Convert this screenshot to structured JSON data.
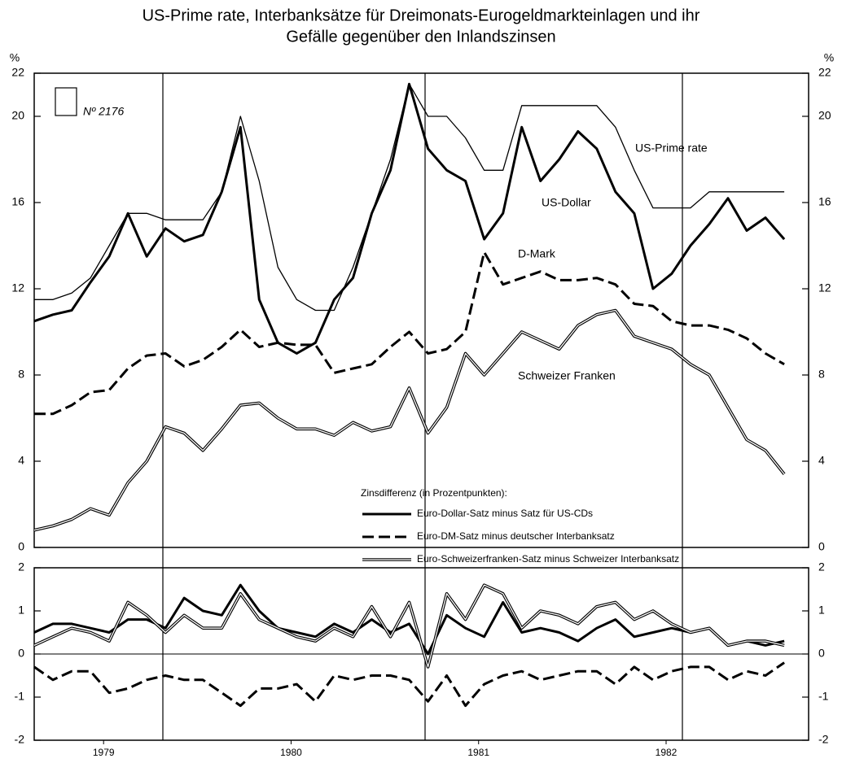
{
  "chart_data": [
    {
      "type": "line",
      "title": [
        "US-Prime rate, Interbanksätze für Dreimonats-Eurogeldmarkteinlagen und ihr",
        "Gefälle gegenüber den Inlandszinsen"
      ],
      "ylabel": "%",
      "badge": "Nº 2176",
      "x": [
        1979.13,
        1979.23,
        1979.33,
        1979.43,
        1979.53,
        1979.63,
        1979.73,
        1979.83,
        1979.93,
        1980.03,
        1980.13,
        1980.23,
        1980.33,
        1980.43,
        1980.53,
        1980.63,
        1980.73,
        1980.83,
        1980.93,
        1981.03,
        1981.13,
        1981.23,
        1981.33,
        1981.43,
        1981.53,
        1981.63,
        1981.73,
        1981.83,
        1981.93,
        1982.03,
        1982.13,
        1982.23,
        1982.33,
        1982.43,
        1982.53,
        1982.63,
        1982.73,
        1982.83,
        1982.93,
        1983.03,
        1983.13
      ],
      "xlim": [
        1979.13,
        1983.26
      ],
      "ylim": [
        0,
        22
      ],
      "yticks": [
        0,
        4,
        8,
        12,
        16,
        20,
        22
      ],
      "series": [
        {
          "name": "US-Prime rate",
          "color": "#000000",
          "line_style": "thin",
          "values": [
            11.5,
            11.5,
            11.8,
            12.5,
            14,
            15.5,
            15.5,
            15.2,
            15.2,
            15.2,
            16.5,
            20,
            17,
            13,
            11.5,
            11,
            11,
            13,
            15.5,
            18,
            21.5,
            20,
            20,
            19,
            17.5,
            17.5,
            20.5,
            20.5,
            20.5,
            20.5,
            20.5,
            19.5,
            17.5,
            15.75,
            15.75,
            15.75,
            16.5,
            16.5,
            16.5,
            16.5,
            16.5
          ]
        },
        {
          "name": "US-Dollar",
          "color": "#000000",
          "line_style": "solid",
          "values": [
            10.5,
            10.8,
            11,
            12.3,
            13.5,
            15.5,
            13.5,
            14.8,
            14.2,
            14.5,
            16.5,
            19.5,
            11.5,
            9.5,
            9,
            9.5,
            11.5,
            12.5,
            15.5,
            17.5,
            21.5,
            18.5,
            17.5,
            17,
            14.3,
            15.5,
            19.5,
            17,
            18,
            19.3,
            18.5,
            16.5,
            15.5,
            12,
            12.7,
            14,
            15,
            16.2,
            14.7,
            15.3,
            14.3
          ]
        },
        {
          "name": "D-Mark",
          "color": "#000000",
          "line_style": "dashed",
          "values": [
            6.2,
            6.2,
            6.6,
            7.2,
            7.3,
            8.3,
            8.9,
            9.0,
            8.4,
            8.7,
            9.3,
            10.1,
            9.3,
            9.5,
            9.4,
            9.4,
            8.1,
            8.3,
            8.5,
            9.3,
            10,
            9,
            9.2,
            10,
            13.7,
            12.2,
            12.5,
            12.8,
            12.4,
            12.4,
            12.5,
            12.2,
            11.3,
            11.2,
            10.5,
            10.3,
            10.3,
            10.1,
            9.7,
            9,
            8.5
          ]
        },
        {
          "name": "Schweizer Franken",
          "color": "#000000",
          "line_style": "double",
          "values": [
            0.8,
            1,
            1.3,
            1.8,
            1.5,
            3,
            4,
            5.6,
            5.3,
            4.5,
            5.5,
            6.6,
            6.7,
            6,
            5.5,
            5.5,
            5.2,
            5.8,
            5.4,
            5.6,
            7.4,
            5.3,
            6.5,
            9,
            8,
            9,
            10,
            9.6,
            9.2,
            10.3,
            10.8,
            11,
            9.8,
            9.5,
            9.2,
            8.5,
            8,
            6.5,
            5,
            4.5,
            3.4
          ]
        }
      ]
    },
    {
      "type": "line",
      "legend_title": "Zinsdifferenz (in Prozentpunkten):",
      "x": [
        1979.13,
        1979.23,
        1979.33,
        1979.43,
        1979.53,
        1979.63,
        1979.73,
        1979.83,
        1979.93,
        1980.03,
        1980.13,
        1980.23,
        1980.33,
        1980.43,
        1980.53,
        1980.63,
        1980.73,
        1980.83,
        1980.93,
        1981.03,
        1981.13,
        1981.23,
        1981.33,
        1981.43,
        1981.53,
        1981.63,
        1981.73,
        1981.83,
        1981.93,
        1982.03,
        1982.13,
        1982.23,
        1982.33,
        1982.43,
        1982.53,
        1982.63,
        1982.73,
        1982.83,
        1982.93,
        1983.03,
        1983.13
      ],
      "xlim": [
        1979.13,
        1983.26
      ],
      "xticks": [
        {
          "value": 1979.5,
          "label": "1979"
        },
        {
          "value": 1980.5,
          "label": "1980"
        },
        {
          "value": 1981.5,
          "label": "1981"
        },
        {
          "value": 1982.5,
          "label": "1982"
        }
      ],
      "ylim": [
        -2,
        2
      ],
      "yticks": [
        -2,
        -1,
        0,
        1,
        2
      ],
      "zero_line": true,
      "series": [
        {
          "name": "Euro-Dollar-Satz minus Satz für US-CDs",
          "color": "#000000",
          "line_style": "solid",
          "values": [
            0.5,
            0.7,
            0.7,
            0.6,
            0.5,
            0.8,
            0.8,
            0.6,
            1.3,
            1.0,
            0.9,
            1.6,
            1.0,
            0.6,
            0.5,
            0.4,
            0.7,
            0.5,
            0.8,
            0.5,
            0.7,
            0.0,
            0.9,
            0.6,
            0.4,
            1.2,
            0.5,
            0.6,
            0.5,
            0.3,
            0.6,
            0.8,
            0.4,
            0.5,
            0.6,
            0.5,
            0.6,
            0.2,
            0.3,
            0.2,
            0.3
          ]
        },
        {
          "name": "Euro-DM-Satz minus deutscher Interbanksatz",
          "color": "#000000",
          "line_style": "dashed",
          "values": [
            -0.3,
            -0.6,
            -0.4,
            -0.4,
            -0.9,
            -0.8,
            -0.6,
            -0.5,
            -0.6,
            -0.6,
            -0.9,
            -1.2,
            -0.8,
            -0.8,
            -0.7,
            -1.1,
            -0.5,
            -0.6,
            -0.5,
            -0.5,
            -0.6,
            -1.1,
            -0.5,
            -1.2,
            -0.7,
            -0.5,
            -0.4,
            -0.6,
            -0.5,
            -0.4,
            -0.4,
            -0.7,
            -0.3,
            -0.6,
            -0.4,
            -0.3,
            -0.3,
            -0.6,
            -0.4,
            -0.5,
            -0.2
          ]
        },
        {
          "name": "Euro-Schweizerfranken-Satz minus Schweizer Interbanksatz",
          "color": "#000000",
          "line_style": "double",
          "values": [
            0.2,
            0.4,
            0.6,
            0.5,
            0.3,
            1.2,
            0.9,
            0.5,
            0.9,
            0.6,
            0.6,
            1.4,
            0.8,
            0.6,
            0.4,
            0.3,
            0.6,
            0.4,
            1.1,
            0.4,
            1.2,
            -0.3,
            1.4,
            0.8,
            1.6,
            1.4,
            0.6,
            1.0,
            0.9,
            0.7,
            1.1,
            1.2,
            0.8,
            1.0,
            0.7,
            0.5,
            0.6,
            0.2,
            0.3,
            0.3,
            0.2
          ]
        }
      ]
    }
  ]
}
